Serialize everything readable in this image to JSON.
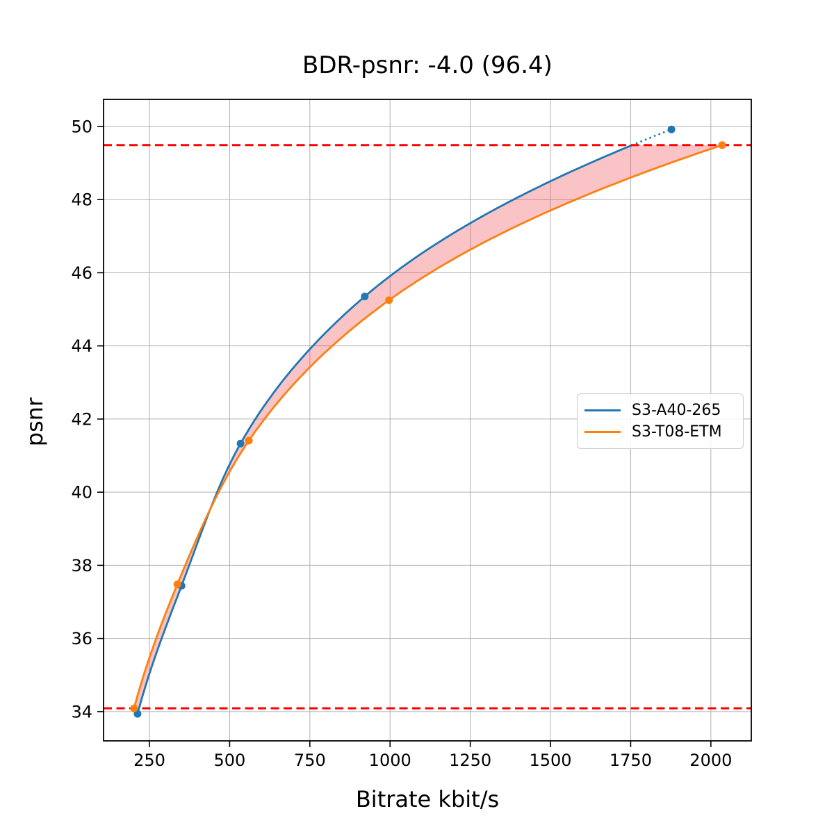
{
  "chart_data": {
    "type": "line",
    "title": "BDR-psnr: -4.0 (96.4)",
    "xlabel": "Bitrate kbit/s",
    "ylabel": "psnr",
    "xlim": [
      107,
      2126
    ],
    "ylim": [
      33.2,
      50.74
    ],
    "x_ticks": [
      250,
      500,
      750,
      1000,
      1250,
      1500,
      1750,
      2000
    ],
    "y_ticks": [
      34,
      36,
      38,
      40,
      42,
      44,
      46,
      48,
      50
    ],
    "grid": true,
    "grid_color": "#b0b0b0",
    "legend_position": "center-right",
    "series": [
      {
        "name": "S3-A40-265",
        "color": "#1f77b4",
        "points": [
          [
            213,
            33.94
          ],
          [
            350,
            37.44
          ],
          [
            534,
            41.33
          ],
          [
            921,
            45.35
          ],
          [
            1877,
            49.92
          ]
        ],
        "dotted_above_psnr": 49.49
      },
      {
        "name": "S3-T08-ETM",
        "color": "#ff7f0e",
        "points": [
          [
            202,
            34.09
          ],
          [
            337,
            37.48
          ],
          [
            560,
            41.41
          ],
          [
            997,
            45.25
          ],
          [
            2035,
            49.49
          ]
        ],
        "dotted_above_psnr": null
      }
    ],
    "hlines": [
      {
        "psnr": 49.49,
        "color": "#ff0000",
        "style": "dashed"
      },
      {
        "psnr": 34.09,
        "color": "#ff0000",
        "style": "dashed"
      }
    ],
    "band": {
      "between": [
        "S3-A40-265",
        "S3-T08-ETM"
      ],
      "psnr_range": [
        34.09,
        49.49
      ],
      "fill": "rgba(240,60,70,0.3)"
    }
  }
}
